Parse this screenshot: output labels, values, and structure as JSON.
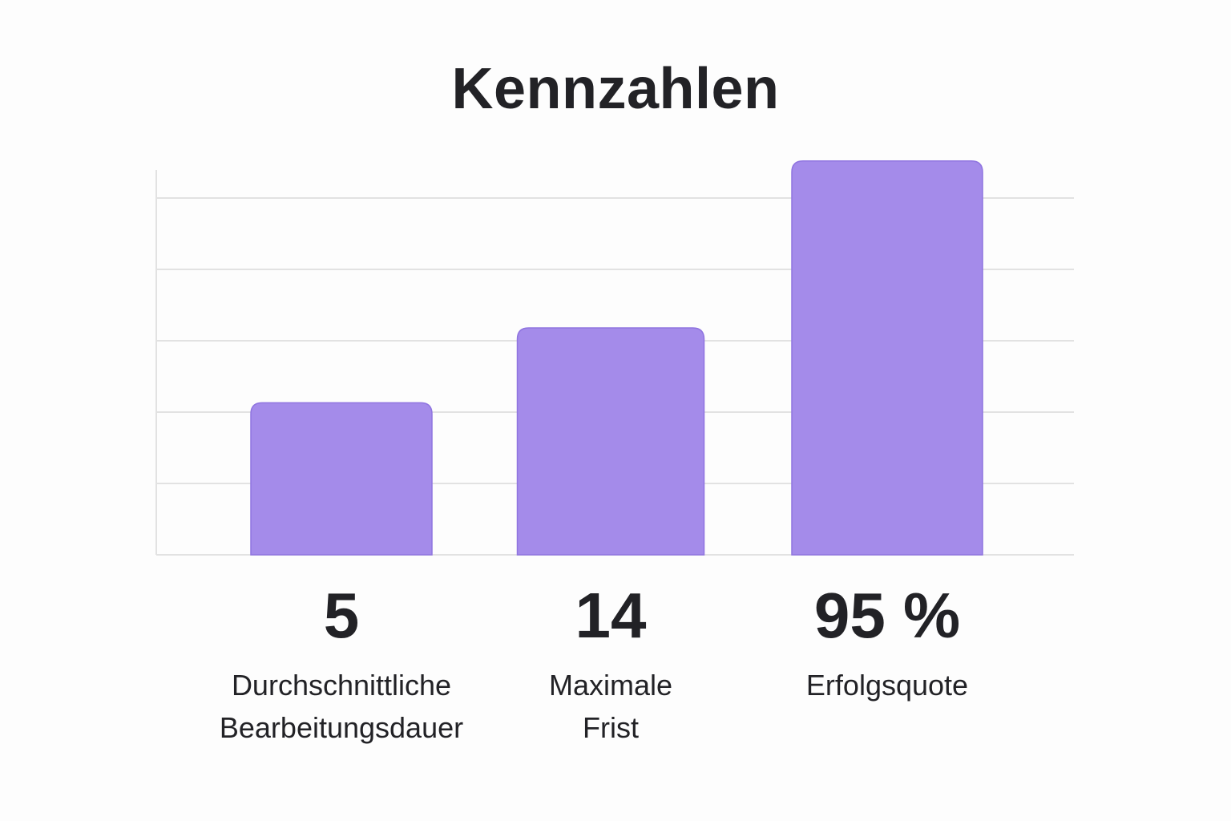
{
  "chart_data": {
    "type": "bar",
    "title": "Kennzahlen",
    "categories": [
      "Durchschnittliche\nBearbeitungsdauer",
      "Maximale\nFrist",
      "Erfolgsquote"
    ],
    "values": [
      5,
      14,
      95
    ],
    "value_labels": [
      "5",
      "14",
      "95 %"
    ],
    "bar_heights_gridline_units": [
      2.13,
      3.18,
      5.52
    ],
    "gridlines": 5,
    "grid": true,
    "xlabel": "",
    "ylabel": "",
    "legend": "none",
    "colors": {
      "bar": "#a48bea",
      "bar_stroke": "#8f74e0",
      "grid": "#e2e2e2",
      "text": "#222226"
    }
  }
}
